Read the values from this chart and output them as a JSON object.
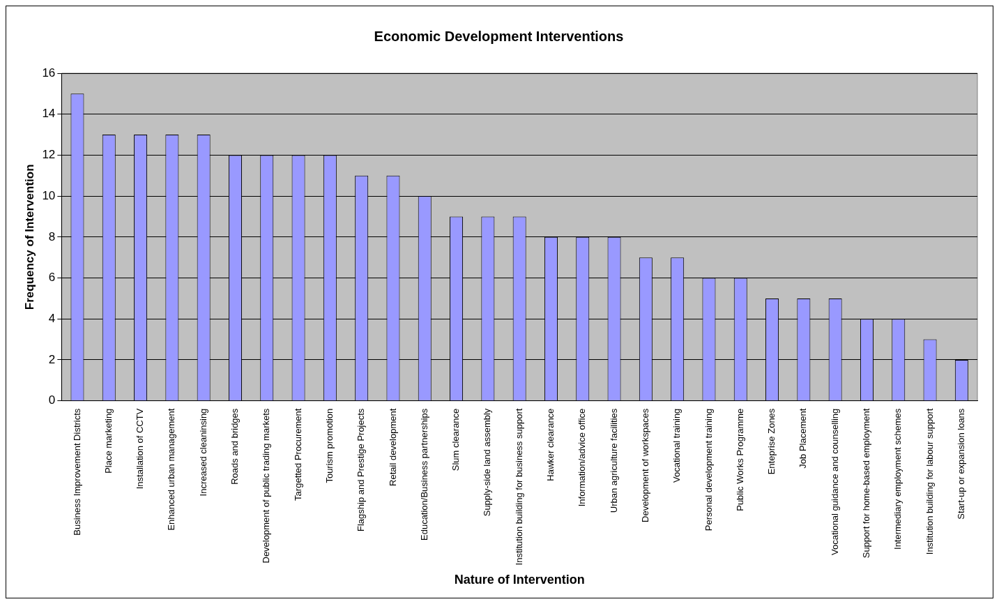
{
  "chart_data": {
    "type": "bar",
    "title": "Economic Development Interventions",
    "xlabel": "Nature of Intervention",
    "ylabel": "Frequency of Intervention",
    "categories": [
      "Business Improvement Districts",
      "Place marketing",
      "Installation of CCTV",
      "Enhanced urban management",
      "Increased cleaninsing",
      "Roads and bridges",
      "Development of public trading markets",
      "Targetted Procurement",
      "Tourism promotion",
      "Flagship and Prestige Projects",
      "Retail development",
      "Education/Business partnerships",
      "Slum clearance",
      "Supply-side land assembly",
      "Institution building for business support",
      "Hawker clearance",
      "Information/advice office",
      "Urban agriculture facilities",
      "Development of workspaces",
      "Vocational training",
      "Personal development training",
      "Public Works Programme",
      "Enteprise Zones",
      "Job Placement",
      "Vocational guidance and counselling",
      "Support for home-based employment",
      "Intermediary employment schemes",
      "Institution building for labour support",
      "Start-up or expansion loans"
    ],
    "values": [
      15,
      13,
      13,
      13,
      13,
      12,
      12,
      12,
      12,
      11,
      11,
      10,
      9,
      9,
      9,
      8,
      8,
      8,
      7,
      7,
      6,
      6,
      5,
      5,
      5,
      4,
      4,
      3,
      2
    ],
    "color": "#9999ff",
    "ylim": [
      0,
      16
    ],
    "yticks": [
      0,
      2,
      4,
      6,
      8,
      10,
      12,
      14,
      16
    ],
    "grid": "y",
    "legend": false
  }
}
